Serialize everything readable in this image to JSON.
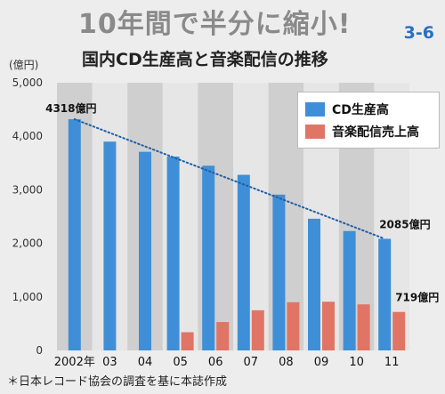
{
  "headline": "10年間で半分に縮小!",
  "figure_number": "3-6",
  "colors": {
    "cd_bar": "#3f8fd8",
    "music_bar": "#e07565",
    "trend_line": "#1f5fa8",
    "band_dark": "#cfcfcf",
    "band_light": "#e6e6e6"
  },
  "chart_data": {
    "type": "bar",
    "title": "国内CD生産高と音楽配信の推移",
    "unit_label": "(億円)",
    "ylim": [
      0,
      5000
    ],
    "yticks": [
      "5,000",
      "4,000",
      "3,000",
      "2,000",
      "1,000",
      "0"
    ],
    "ytick_values": [
      5000,
      4000,
      3000,
      2000,
      1000,
      0
    ],
    "categories": [
      "2002年",
      "03",
      "04",
      "05",
      "06",
      "07",
      "08",
      "09",
      "10",
      "11"
    ],
    "series": [
      {
        "name": "CD生産高",
        "values": [
          4318,
          3900,
          3710,
          3620,
          3450,
          3280,
          2910,
          2460,
          2230,
          2085
        ]
      },
      {
        "name": "音楽配信売上高",
        "values": [
          null,
          null,
          null,
          340,
          530,
          750,
          900,
          910,
          860,
          719
        ]
      }
    ],
    "annotations": [
      {
        "text": "4318億円",
        "series": 0,
        "index": 0
      },
      {
        "text": "2085億円",
        "series": 0,
        "index": 9
      },
      {
        "text": "719億円",
        "series": 1,
        "index": 9
      }
    ],
    "trend_line": "dotted line from 2002 CD value to 2011 CD value",
    "legend_placement": "top-right",
    "grid": false
  },
  "source_note": "＊日本レコード協会の調査を基に本誌作成"
}
